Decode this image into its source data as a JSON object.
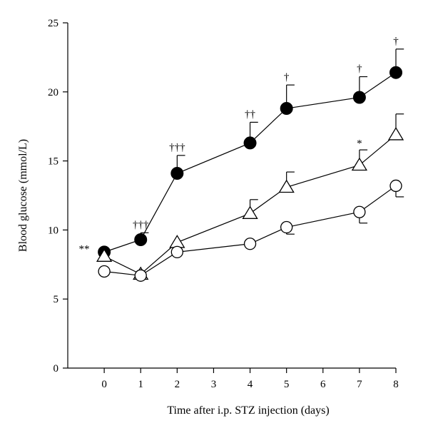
{
  "chart_data": {
    "type": "line",
    "xlabel": "Time after i.p. STZ injection (days)",
    "ylabel": "Blood glucose (mmol/L)",
    "xlim": [
      -1,
      8
    ],
    "ylim": [
      0,
      25
    ],
    "xticks": [
      0,
      1,
      2,
      3,
      4,
      5,
      6,
      7,
      8
    ],
    "yticks": [
      0,
      5,
      10,
      15,
      20,
      25
    ],
    "grid": false,
    "legend": "none",
    "series": [
      {
        "marker": "filled-circle",
        "x": [
          0,
          1,
          2,
          4,
          5,
          7,
          8
        ],
        "y": [
          8.4,
          9.3,
          14.1,
          16.3,
          18.8,
          19.6,
          21.4
        ],
        "error_upper": [
          null,
          9.8,
          15.4,
          17.8,
          20.5,
          21.1,
          23.1
        ],
        "error_lower": [
          null,
          null,
          null,
          null,
          null,
          null,
          null
        ]
      },
      {
        "marker": "open-triangle",
        "x": [
          0,
          1,
          2,
          4,
          5,
          7,
          8
        ],
        "y": [
          8.1,
          6.8,
          9.1,
          11.2,
          13.1,
          14.7,
          16.9
        ],
        "error_upper": [
          null,
          null,
          null,
          12.2,
          14.2,
          15.8,
          18.4
        ],
        "error_lower": [
          null,
          null,
          null,
          null,
          null,
          null,
          null
        ]
      },
      {
        "marker": "open-circle",
        "x": [
          0,
          1,
          2,
          4,
          5,
          7,
          8
        ],
        "y": [
          7.0,
          6.7,
          8.4,
          9.0,
          10.2,
          11.3,
          13.2
        ],
        "error_upper": [
          null,
          null,
          null,
          null,
          null,
          null,
          null
        ],
        "error_lower": [
          null,
          null,
          null,
          null,
          9.7,
          10.5,
          12.4
        ]
      }
    ],
    "annotations": [
      {
        "text": "**",
        "x": -0.55,
        "y": 8.4
      },
      {
        "text": "†††",
        "x": 1,
        "y": 10.15
      },
      {
        "text": "†††",
        "x": 2,
        "y": 15.75
      },
      {
        "text": "††",
        "x": 4,
        "y": 18.15
      },
      {
        "text": "†",
        "x": 5,
        "y": 20.85
      },
      {
        "text": "†",
        "x": 7,
        "y": 21.45
      },
      {
        "text": "†",
        "x": 8,
        "y": 23.45
      },
      {
        "text": "*",
        "x": 7,
        "y": 16.05
      }
    ]
  }
}
